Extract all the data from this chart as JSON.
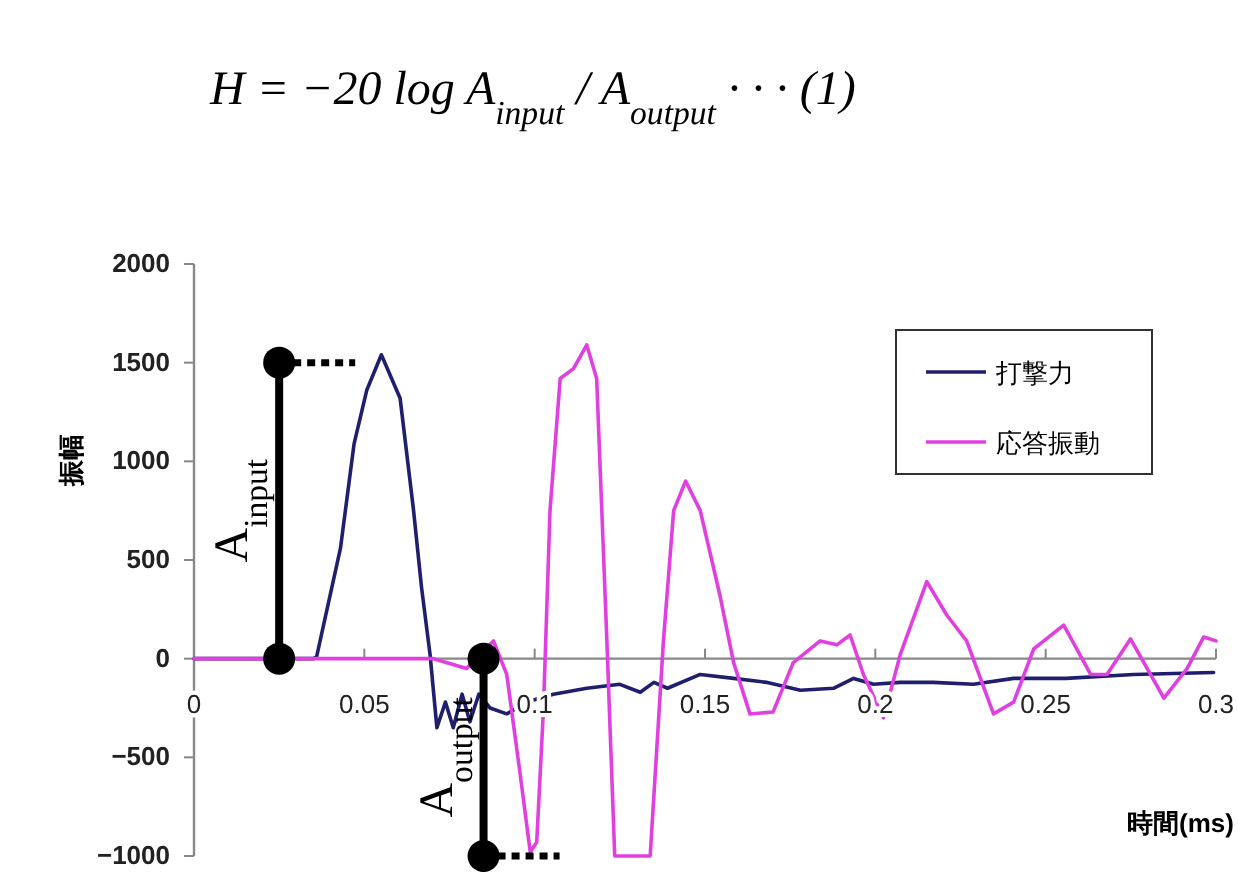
{
  "chart_data": {
    "type": "line",
    "title": "H = −20 log A$_{input}$ / A$_{output}$   · · ·   (1)",
    "xlabel": "時間(ms)",
    "ylabel": "振幅",
    "xlim": [
      0,
      0.3
    ],
    "xticks": [
      0,
      0.05,
      0.1,
      0.15,
      0.2,
      0.25,
      0.3
    ],
    "ylim": [
      -1000,
      2000
    ],
    "yticks": [
      -1000,
      -500,
      0,
      500,
      1000,
      1500,
      2000
    ],
    "grid": false,
    "legend": "top right",
    "marker": "none",
    "line_style": "solid",
    "annotations": [
      {
        "text": "A$_{input}$",
        "x": 0.025,
        "y": 1500
      },
      {
        "text": "A$_{output}$",
        "x": 0.085,
        "y": -1000
      }
    ],
    "series": [
      {
        "name": "打撃力",
        "color": "#1f1f6e",
        "x": [
          0,
          0.035,
          0.036,
          0.043,
          0.047,
          0.0507,
          0.055,
          0.0605,
          0.0644,
          0.0668,
          0.0693,
          0.0713,
          0.0738,
          0.0761,
          0.0787,
          0.081,
          0.0836,
          0.0869,
          0.0918,
          0.0977,
          0.1055,
          0.1153,
          0.125,
          0.131,
          0.135,
          0.139,
          0.1486,
          0.1584,
          0.168,
          0.178,
          0.1877,
          0.1936,
          0.1995,
          0.2073,
          0.217,
          0.2288,
          0.2406,
          0.256,
          0.2758,
          0.2993
        ],
        "values": [
          0,
          0,
          10,
          560,
          1090,
          1360,
          1540,
          1320,
          760,
          360,
          20,
          -350,
          -220,
          -350,
          -180,
          -320,
          -180,
          -250,
          -280,
          -220,
          -180,
          -150,
          -130,
          -170,
          -120,
          -150,
          -80,
          -100,
          -120,
          -160,
          -150,
          -100,
          -130,
          -120,
          -120,
          -130,
          -100,
          -100,
          -80,
          -70
        ]
      },
      {
        "name": "応答振動",
        "color": "#e040e0",
        "x": [
          0,
          0.0703,
          0.08,
          0.0879,
          0.0918,
          0.0957,
          0.0987,
          0.1006,
          0.1026,
          0.1045,
          0.1075,
          0.1114,
          0.1153,
          0.1182,
          0.1212,
          0.1235,
          0.1339,
          0.1378,
          0.1408,
          0.1443,
          0.1486,
          0.1544,
          0.1584,
          0.1632,
          0.17,
          0.1759,
          0.1838,
          0.1887,
          0.1926,
          0.1965,
          0.2024,
          0.2073,
          0.2151,
          0.221,
          0.2268,
          0.2347,
          0.2406,
          0.2465,
          0.2553,
          0.2632,
          0.268,
          0.2749,
          0.2847,
          0.2915,
          0.2964,
          0.3
        ],
        "values": [
          0,
          0,
          -50,
          90,
          -80,
          -580,
          -980,
          -930,
          -250,
          750,
          1420,
          1470,
          1590,
          1420,
          90,
          -1000,
          -1000,
          90,
          750,
          900,
          750,
          320,
          -20,
          -280,
          -270,
          -20,
          90,
          70,
          120,
          -80,
          -300,
          20,
          390,
          220,
          90,
          -280,
          -220,
          50,
          170,
          -80,
          -80,
          100,
          -200,
          -50,
          110,
          90
        ]
      }
    ]
  }
}
